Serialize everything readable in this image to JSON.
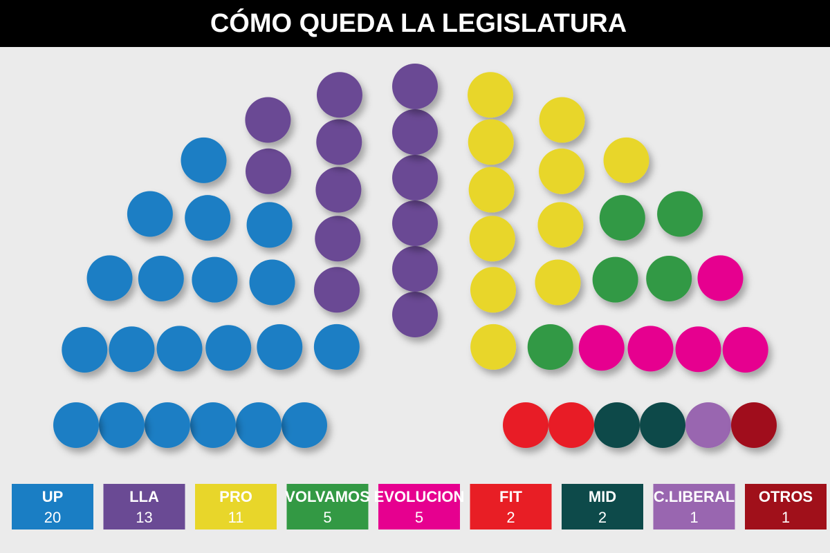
{
  "chart_data": {
    "type": "parliament",
    "title": "CÓMO QUEDA LA LEGISLATURA",
    "categories": [
      "UP",
      "LLA",
      "PRO",
      "VOLVAMOS",
      "EVOLUCION",
      "FIT",
      "MID",
      "C.LIBERAL",
      "OTROS"
    ],
    "values": [
      20,
      13,
      11,
      5,
      5,
      2,
      2,
      1,
      1
    ],
    "colors": [
      "#1a7ec4",
      "#6a4a94",
      "#e8d62a",
      "#339944",
      "#e6008f",
      "#e81e25",
      "#0d4a4a",
      "#9966b0",
      "#a0101a"
    ]
  }
}
